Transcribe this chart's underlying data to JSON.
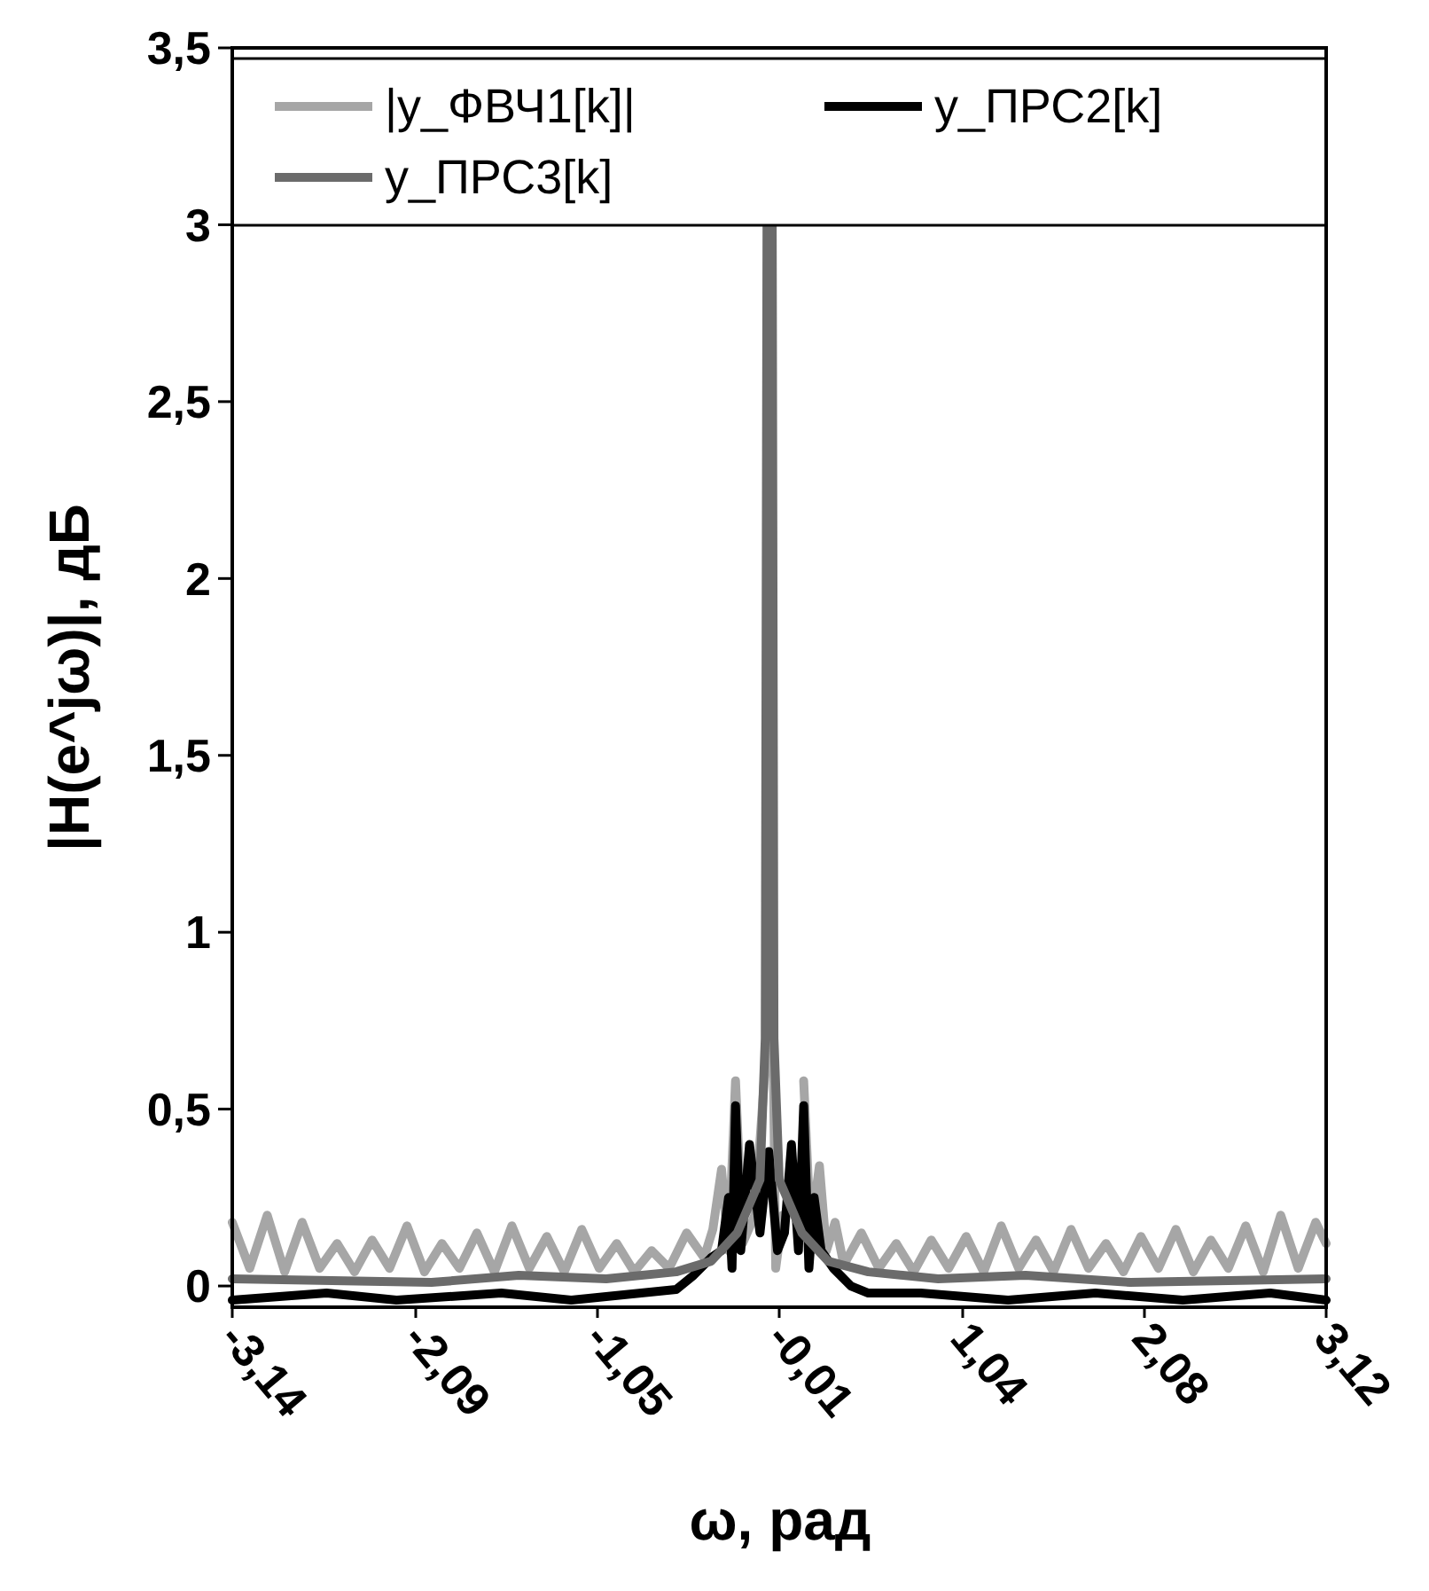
{
  "chart_data": {
    "type": "line",
    "xlabel": "ω, рад",
    "ylabel": "|H(e^jω)|, дБ",
    "xlim": [
      -3.14,
      3.12
    ],
    "xticks": [
      {
        "value": -3.14,
        "label": "-3,14"
      },
      {
        "value": -2.09,
        "label": "-2,09"
      },
      {
        "value": -1.05,
        "label": "-1,05"
      },
      {
        "value": -0.01,
        "label": "-0,01"
      },
      {
        "value": 1.04,
        "label": "1,04"
      },
      {
        "value": 2.08,
        "label": "2,08"
      },
      {
        "value": 3.12,
        "label": "3,12"
      }
    ],
    "ylim": [
      -0.06,
      3.5
    ],
    "yticks": [
      0,
      {
        "value": 0.5,
        "label": "0,5"
      },
      1,
      {
        "value": 1.5,
        "label": "1,5"
      },
      2,
      {
        "value": 2.5,
        "label": "2,5"
      },
      3,
      {
        "value": 3.5,
        "label": "3,5"
      }
    ],
    "grid": false,
    "legend": "top",
    "marker": "none",
    "line_style": "solid",
    "series": [
      {
        "name": "|y_ФВЧ1[k]|",
        "color": "#a6a6a6",
        "x": [
          -3.14,
          -3.04,
          -2.94,
          -2.84,
          -2.74,
          -2.64,
          -2.54,
          -2.44,
          -2.34,
          -2.24,
          -2.14,
          -2.04,
          -1.94,
          -1.84,
          -1.74,
          -1.64,
          -1.54,
          -1.44,
          -1.34,
          -1.24,
          -1.14,
          -1.04,
          -0.94,
          -0.84,
          -0.74,
          -0.64,
          -0.54,
          -0.44,
          -0.39,
          -0.34,
          -0.3,
          -0.26,
          -0.22,
          -0.15,
          -0.05,
          -0.03,
          0.01,
          0.09,
          0.13,
          0.17,
          0.22,
          0.26,
          0.31,
          0.36,
          0.46,
          0.56,
          0.66,
          0.76,
          0.86,
          0.96,
          1.06,
          1.16,
          1.26,
          1.36,
          1.46,
          1.56,
          1.66,
          1.76,
          1.86,
          1.96,
          2.06,
          2.16,
          2.26,
          2.36,
          2.46,
          2.56,
          2.66,
          2.76,
          2.86,
          2.96,
          3.06,
          3.12
        ],
        "values": [
          0.18,
          0.05,
          0.2,
          0.04,
          0.18,
          0.05,
          0.12,
          0.04,
          0.13,
          0.05,
          0.17,
          0.04,
          0.12,
          0.05,
          0.15,
          0.04,
          0.17,
          0.05,
          0.14,
          0.04,
          0.16,
          0.05,
          0.12,
          0.04,
          0.1,
          0.05,
          0.15,
          0.08,
          0.16,
          0.33,
          0.1,
          0.58,
          0.12,
          0.2,
          0.9,
          0.05,
          0.2,
          null,
          0.58,
          0.15,
          0.34,
          0.1,
          0.18,
          0.06,
          0.15,
          0.05,
          0.12,
          0.04,
          0.13,
          0.05,
          0.14,
          0.04,
          0.17,
          0.05,
          0.13,
          0.04,
          0.16,
          0.05,
          0.12,
          0.04,
          0.14,
          0.05,
          0.16,
          0.04,
          0.13,
          0.05,
          0.17,
          0.04,
          0.2,
          0.05,
          0.18,
          0.12
        ]
      },
      {
        "name": "y_ПРС2[k]",
        "color": "#000000",
        "x": [
          -3.14,
          -2.6,
          -2.2,
          -1.6,
          -1.2,
          -0.8,
          -0.6,
          -0.5,
          -0.4,
          -0.34,
          -0.3,
          -0.28,
          -0.26,
          -0.23,
          -0.18,
          -0.12,
          -0.07,
          -0.02,
          0.02,
          0.06,
          0.1,
          0.13,
          0.16,
          0.19,
          0.23,
          0.3,
          0.4,
          0.5,
          0.8,
          1.3,
          1.8,
          2.3,
          2.8,
          3.12
        ],
        "values": [
          -0.04,
          -0.02,
          -0.04,
          -0.02,
          -0.04,
          -0.02,
          -0.01,
          0.03,
          0.08,
          0.1,
          0.25,
          0.05,
          0.51,
          0.1,
          0.4,
          0.15,
          0.38,
          0.1,
          0.15,
          0.4,
          0.1,
          0.51,
          0.05,
          0.25,
          0.1,
          0.05,
          0.0,
          -0.02,
          -0.02,
          -0.04,
          -0.02,
          -0.04,
          -0.02,
          -0.04
        ]
      },
      {
        "name": "y_ПРС3[k]",
        "color": "#6b6b6b",
        "x": [
          -3.14,
          -2.0,
          -1.5,
          -1.0,
          -0.6,
          -0.4,
          -0.25,
          -0.12,
          -0.09,
          -0.08,
          -0.05,
          -0.04,
          -0.01,
          0.12,
          0.27,
          0.5,
          0.9,
          1.4,
          2.0,
          3.12
        ],
        "values": [
          0.02,
          0.01,
          0.03,
          0.02,
          0.04,
          0.07,
          0.15,
          0.3,
          0.7,
          3.0,
          3.0,
          0.7,
          0.3,
          0.15,
          0.07,
          0.04,
          0.02,
          0.03,
          0.01,
          0.02
        ]
      }
    ]
  }
}
